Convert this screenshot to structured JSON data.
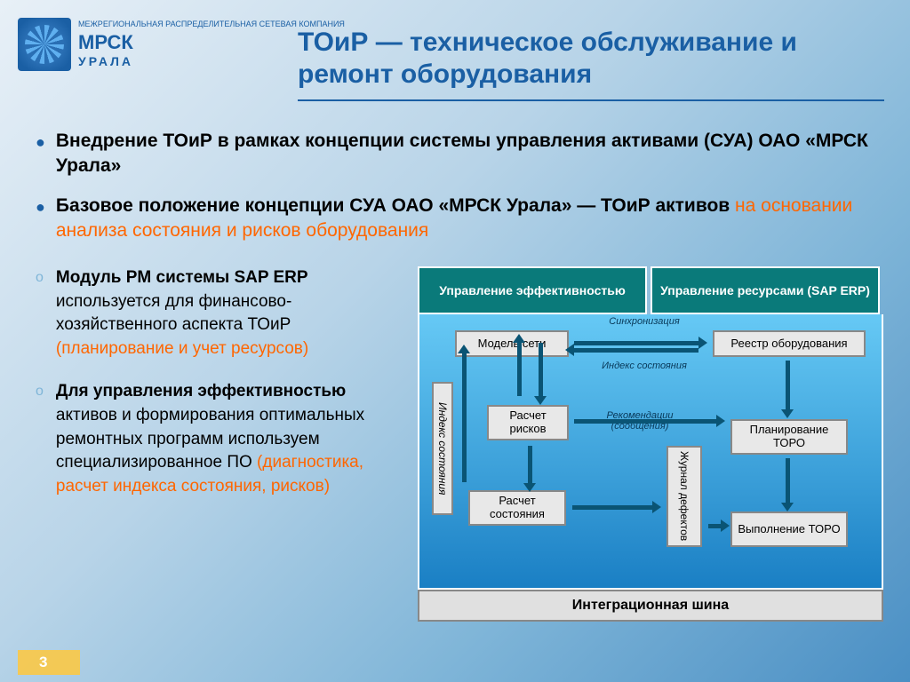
{
  "logo": {
    "small": "МЕЖРЕГИОНАЛЬНАЯ РАСПРЕДЕЛИТЕЛЬНАЯ СЕТЕВАЯ КОМПАНИЯ",
    "brand": "МРСК",
    "sub": "УРАЛА"
  },
  "title": "ТОиР — техническое обслуживание и ремонт оборудования",
  "bullets": [
    {
      "text": "Внедрение ТОиР в рамках концепции системы управления активами (СУА) ОАО «МРСК Урала»"
    },
    {
      "plain": "Базовое положение концепции СУА ОАО «МРСК Урала» — ТОиР активов ",
      "hl": "на основании анализа состояния и рисков оборудования"
    }
  ],
  "subs": [
    {
      "bold": "Модуль PM системы SAP ERP",
      "plain": " используется для финансово-хозяйственного аспекта ТОиР ",
      "hl": "(планирование и учет ресурсов)"
    },
    {
      "bold": "Для управления эффективностью",
      "plain": " активов и формирования оптимальных ремонтных программ  используем специализированное ПО ",
      "hl": "(диагностика, расчет индекса состояния, рисков)"
    }
  ],
  "diagram": {
    "headers": [
      "Управление эффективностью",
      "Управление ресурсами (SAP ERP)"
    ],
    "boxes": {
      "model": "Модель сети",
      "registry": "Реестр оборудования",
      "risk": "Расчет рисков",
      "plan": "Планирование ТОРО",
      "calc": "Расчет состояния",
      "exec": "Выполнение ТОРО",
      "idx": "Индекс состояния",
      "jour": "Журнал дефектов"
    },
    "labels": {
      "sync": "Синхронизация",
      "idx": "Индекс состояния",
      "rec": "Рекомендации (сообщения)"
    },
    "footer": "Интеграционная шина",
    "colors": {
      "header_bg": "#0a7a7a",
      "body_top": "#66c9f5",
      "body_bot": "#1a7fc4",
      "arrow": "#0a5474",
      "box_bg": "#e8e8e8"
    }
  },
  "page": "3"
}
